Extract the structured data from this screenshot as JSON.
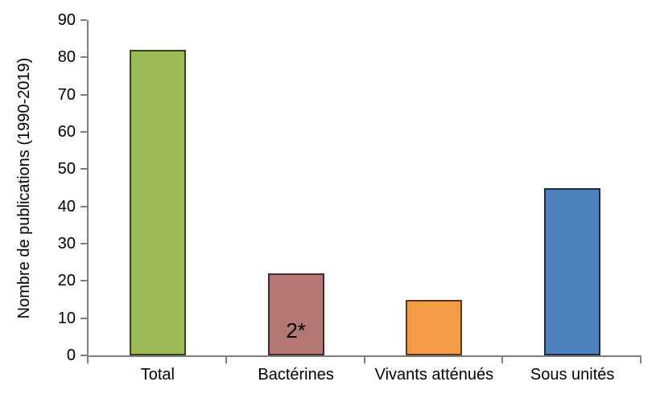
{
  "chart_data": {
    "type": "bar",
    "title": "",
    "xlabel": "",
    "ylabel": "Nombre de publications (1990-2019)",
    "ylim": [
      0,
      90
    ],
    "ytick_step": 10,
    "yticks": [
      0,
      10,
      20,
      30,
      40,
      50,
      60,
      70,
      80,
      90
    ],
    "grid": false,
    "legend": false,
    "categories": [
      "Total",
      "Bactérines",
      "Vivants atténués",
      "Sous unités"
    ],
    "values": [
      82,
      22,
      15,
      45
    ],
    "bars": [
      {
        "category": "Total",
        "value": 82,
        "fill": "#9BBB59",
        "border": "#39401D",
        "label": ""
      },
      {
        "category": "Bactérines",
        "value": 22,
        "fill": "#B47775",
        "border": "#472B2C",
        "label": "2*"
      },
      {
        "category": "Vivants atténués",
        "value": 15,
        "fill": "#F49B45",
        "border": "#59371A",
        "label": ""
      },
      {
        "category": "Sous unités",
        "value": 45,
        "fill": "#4F81BD",
        "border": "#1D2D40",
        "label": ""
      }
    ],
    "axis_color": "#808080",
    "text_color": "#000000",
    "background_color": "#FFFFFF"
  }
}
